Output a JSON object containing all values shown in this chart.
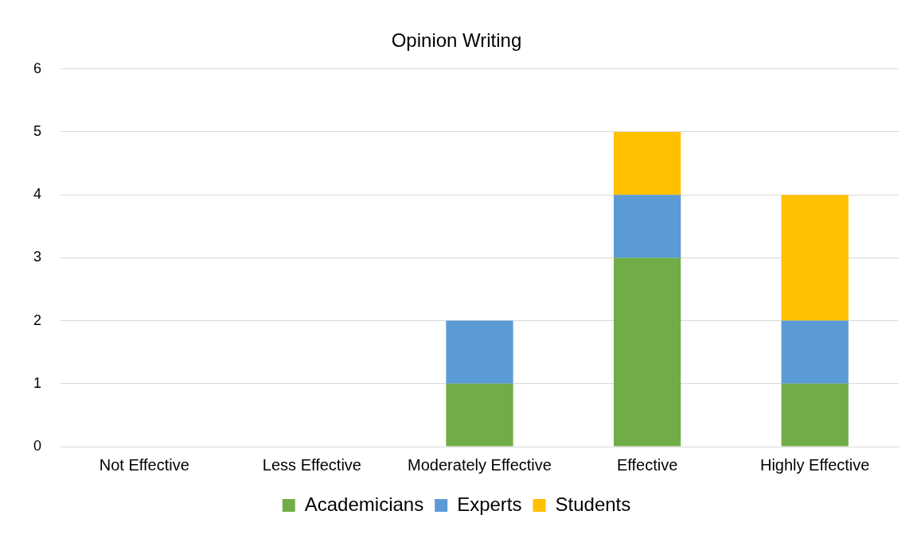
{
  "chart_data": {
    "type": "bar",
    "title": "Opinion Writing",
    "stacked": true,
    "categories": [
      "Not Effective",
      "Less Effective",
      "Moderately Effective",
      "Effective",
      "Highly Effective"
    ],
    "series": [
      {
        "name": "Academicians",
        "color": "#70ad47",
        "values": [
          0,
          0,
          1,
          3,
          1
        ]
      },
      {
        "name": "Experts",
        "color": "#5b9bd5",
        "values": [
          0,
          0,
          1,
          1,
          1
        ]
      },
      {
        "name": "Students",
        "color": "#ffc000",
        "values": [
          0,
          0,
          0,
          1,
          2
        ]
      }
    ],
    "ylim": [
      0,
      6
    ],
    "yticks": [
      0,
      1,
      2,
      3,
      4,
      5,
      6
    ],
    "grid": "y",
    "legend": "bottom"
  }
}
